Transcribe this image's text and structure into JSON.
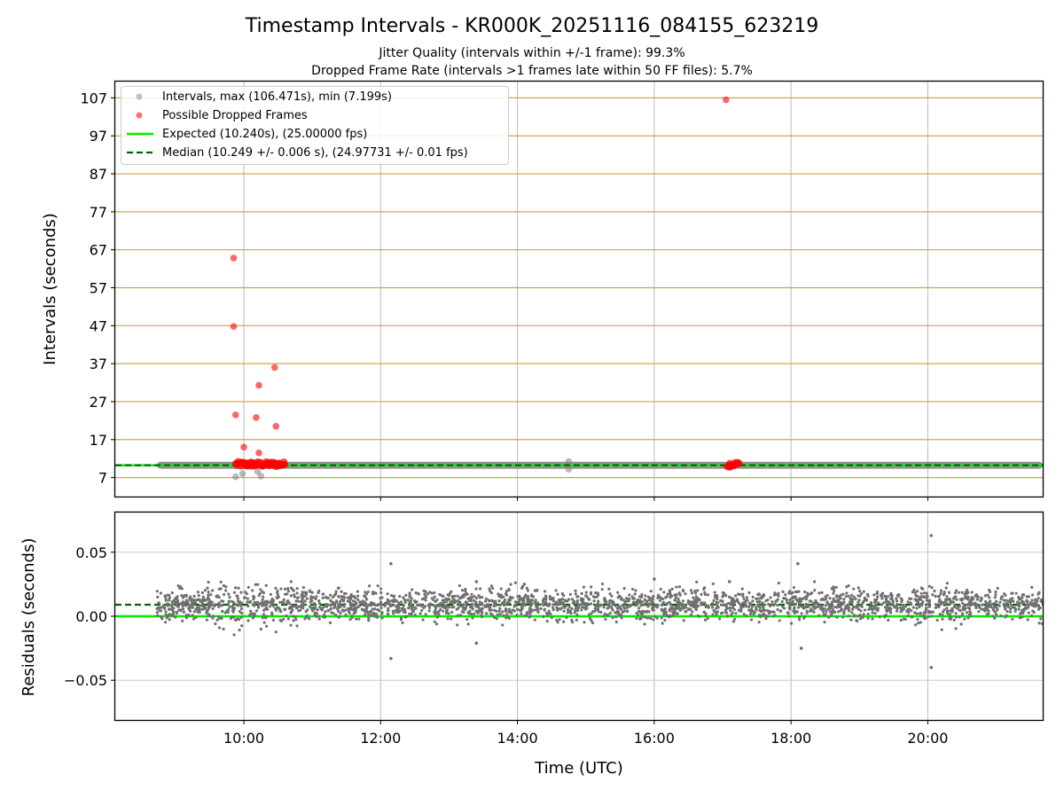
{
  "chart_data": [
    {
      "type": "scatter",
      "title": "Timestamp Intervals - KR000K_20251116_084155_623219",
      "subtitle_lines": [
        "Jitter Quality (intervals within +/-1 frame): 99.3%",
        "Dropped Frame Rate (intervals >1 frames late within 50 FF files): 5.7%"
      ],
      "ylabel": "Intervals (seconds)",
      "xlabel": "Time (UTC)",
      "x_unit": "hours UTC",
      "xlim": [
        8.12,
        21.68
      ],
      "ylim": [
        2.0,
        111.3
      ],
      "yticks": [
        7,
        17,
        27,
        37,
        47,
        57,
        67,
        77,
        87,
        97,
        107
      ],
      "xticks": [
        10,
        12,
        14,
        16,
        18,
        20
      ],
      "xtick_labels": [
        "10:00",
        "12:00",
        "14:00",
        "16:00",
        "18:00",
        "20:00"
      ],
      "expected_interval": 10.24,
      "median_interval": 10.249,
      "legend": {
        "position": "upper-left",
        "intervals": "Intervals, max (106.471s), min (7.199s)",
        "dropped": "Possible Dropped Frames",
        "expected": "Expected (10.240s), (25.00000 fps)",
        "median": "Median (10.249 +/- 0.006 s), (24.97731 +/- 0.01 fps)"
      },
      "series": [
        {
          "name": "Intervals",
          "color": "#808080",
          "x_range": [
            8.73,
            21.68
          ],
          "typical_value": 10.24
        },
        {
          "name": "Possible Dropped Frames",
          "color": "#ff0000",
          "points": [
            [
              9.85,
              64.8
            ],
            [
              9.85,
              46.8
            ],
            [
              9.88,
              23.5
            ],
            [
              10.0,
              15.0
            ],
            [
              10.18,
              22.8
            ],
            [
              10.22,
              31.3
            ],
            [
              10.45,
              36.0
            ],
            [
              10.47,
              20.5
            ],
            [
              10.22,
              13.5
            ],
            [
              17.05,
              106.5
            ]
          ],
          "clusters": [
            [
              9.88,
              10.6
            ],
            [
              17.07,
              17.24
            ]
          ]
        },
        {
          "name": "Interval min/max outliers",
          "color": "#808080",
          "points": [
            [
              9.88,
              7.2
            ],
            [
              9.98,
              8.0
            ],
            [
              10.25,
              7.4
            ],
            [
              10.2,
              8.6
            ],
            [
              14.75,
              11.2
            ],
            [
              14.75,
              9.2
            ],
            [
              17.1,
              9.6
            ]
          ]
        }
      ],
      "colors": {
        "expected": "#00ee00",
        "median": "#006400",
        "grid_y": "#c8a84b",
        "grid_x": "#bbbbbb"
      }
    },
    {
      "type": "scatter",
      "ylabel": "Residuals (seconds)",
      "xlabel": "Time (UTC)",
      "xlim": [
        8.12,
        21.68
      ],
      "ylim": [
        -0.081,
        0.081
      ],
      "yticks": [
        -0.05,
        0.0,
        0.05
      ],
      "ytick_labels": [
        "−0.05",
        "0.00",
        "0.05"
      ],
      "expected_residual": 0.0,
      "median_residual": 0.009,
      "series": [
        {
          "name": "Residuals",
          "color": "#707070",
          "x_range": [
            8.73,
            21.68
          ],
          "center": 0.009,
          "spread": 0.008,
          "outliers": [
            [
              12.15,
              0.041
            ],
            [
              12.15,
              -0.033
            ],
            [
              13.4,
              -0.021
            ],
            [
              13.4,
              0.027
            ],
            [
              14.1,
              0.025
            ],
            [
              16.0,
              0.029
            ],
            [
              18.1,
              0.041
            ],
            [
              18.15,
              -0.025
            ],
            [
              20.05,
              0.063
            ],
            [
              20.05,
              -0.04
            ],
            [
              17.1,
              0.027
            ]
          ]
        }
      ]
    }
  ]
}
